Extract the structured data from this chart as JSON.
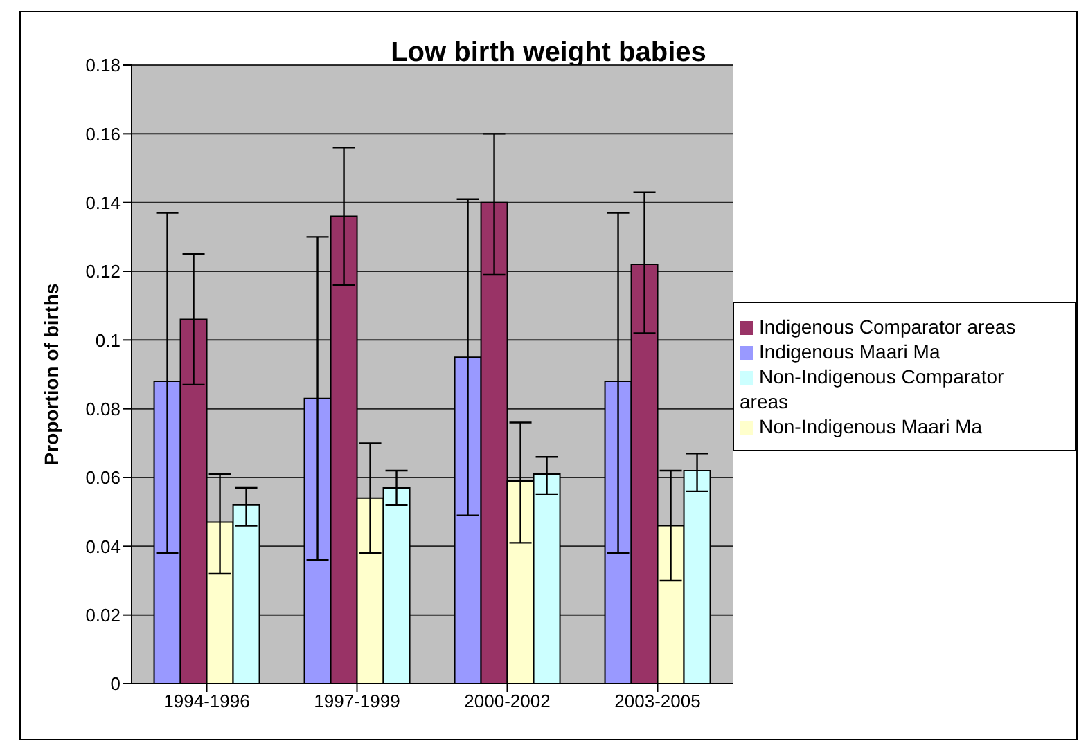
{
  "chart_data": {
    "type": "bar",
    "title": "Low birth weight babies",
    "ylabel": "Proportion of births",
    "categories": [
      "1994-1996",
      "1997-1999",
      "2000-2002",
      "2003-2005"
    ],
    "series": [
      {
        "name": "Indigenous Maari Ma",
        "color": "#9999ff",
        "values": [
          0.088,
          0.083,
          0.095,
          0.088
        ],
        "errors": [
          [
            0.038,
            0.137
          ],
          [
            0.036,
            0.13
          ],
          [
            0.049,
            0.141
          ],
          [
            0.038,
            0.137
          ]
        ]
      },
      {
        "name": "Indigenous Comparator areas",
        "color": "#993366",
        "values": [
          0.106,
          0.136,
          0.14,
          0.122
        ],
        "errors": [
          [
            0.087,
            0.125
          ],
          [
            0.116,
            0.156
          ],
          [
            0.119,
            0.16
          ],
          [
            0.102,
            0.143
          ]
        ]
      },
      {
        "name": "Non-Indigenous Maari Ma",
        "color": "#ffffcc",
        "values": [
          0.047,
          0.054,
          0.059,
          0.046
        ],
        "errors": [
          [
            0.032,
            0.061
          ],
          [
            0.038,
            0.07
          ],
          [
            0.041,
            0.076
          ],
          [
            0.03,
            0.062
          ]
        ]
      },
      {
        "name": "Non-Indigenous Comparator areas",
        "color": "#ccffff",
        "values": [
          0.052,
          0.057,
          0.061,
          0.062
        ],
        "errors": [
          [
            0.046,
            0.057
          ],
          [
            0.052,
            0.062
          ],
          [
            0.055,
            0.066
          ],
          [
            0.056,
            0.067
          ]
        ]
      }
    ],
    "ylim": [
      0,
      0.18
    ],
    "yticks": [
      0,
      0.02,
      0.04,
      0.06,
      0.08,
      0.1,
      0.12,
      0.14,
      0.16,
      0.18
    ],
    "grid": "y",
    "legend": "right"
  }
}
